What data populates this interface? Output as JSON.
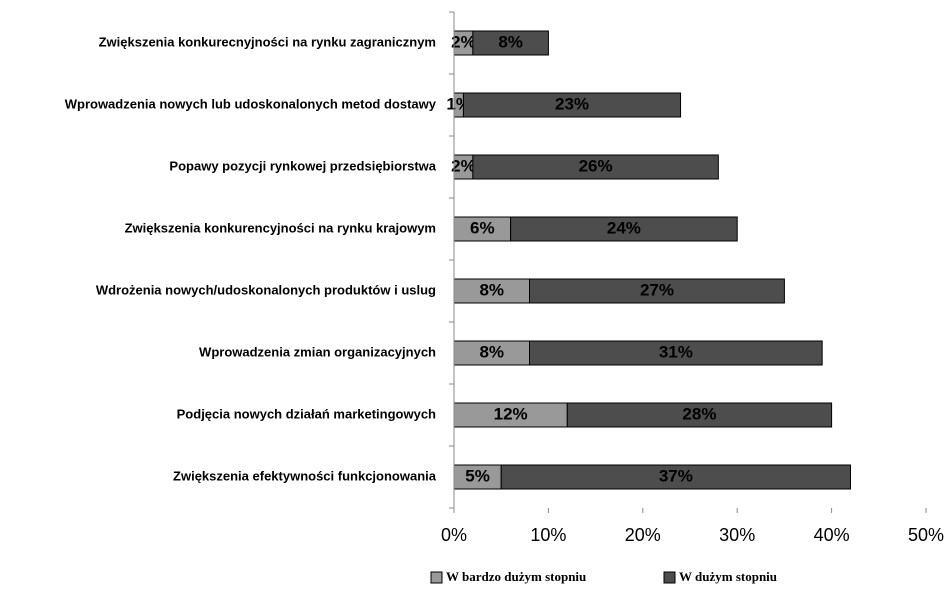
{
  "chart_data": {
    "type": "stacked-barh",
    "categories": [
      "Zwiększenia konkurecnyjności na rynku zagranicznym",
      "Wprowadzenia nowych lub udoskonalonych metod dostawy",
      "Popawy pozycji rynkowej przedsiębiorstwa",
      "Zwiększenia konkurencyjności na rynku krajowym",
      "Wdrożenia nowych/udoskonalonych produktów i uslug",
      "Wprowadzenia zmian organizacyjnych",
      "Podjęcia nowych działań marketingowych",
      "Zwiększenia efektywności funkcjonowania"
    ],
    "series": [
      {
        "name": "W bardzo dużym stopniu",
        "color": "#999999",
        "values": [
          2,
          1,
          2,
          6,
          8,
          8,
          12,
          5
        ],
        "value_labels": [
          "2%",
          "1%",
          "2%",
          "6%",
          "8%",
          "8%",
          "12%",
          "5%"
        ]
      },
      {
        "name": "W dużym stopniu",
        "color": "#4d4d4d",
        "values": [
          8,
          23,
          26,
          24,
          27,
          31,
          28,
          37
        ],
        "value_labels": [
          "8%",
          "23%",
          "26%",
          "24%",
          "27%",
          "31%",
          "28%",
          "37%"
        ]
      }
    ],
    "xlim": [
      0,
      50
    ],
    "xticks": [
      {
        "value": 0,
        "label": "0%"
      },
      {
        "value": 10,
        "label": "10%"
      },
      {
        "value": 20,
        "label": "20%"
      },
      {
        "value": 30,
        "label": "30%"
      },
      {
        "value": 40,
        "label": "40%"
      },
      {
        "value": 50,
        "label": "50%"
      }
    ],
    "legend": "bottom"
  }
}
